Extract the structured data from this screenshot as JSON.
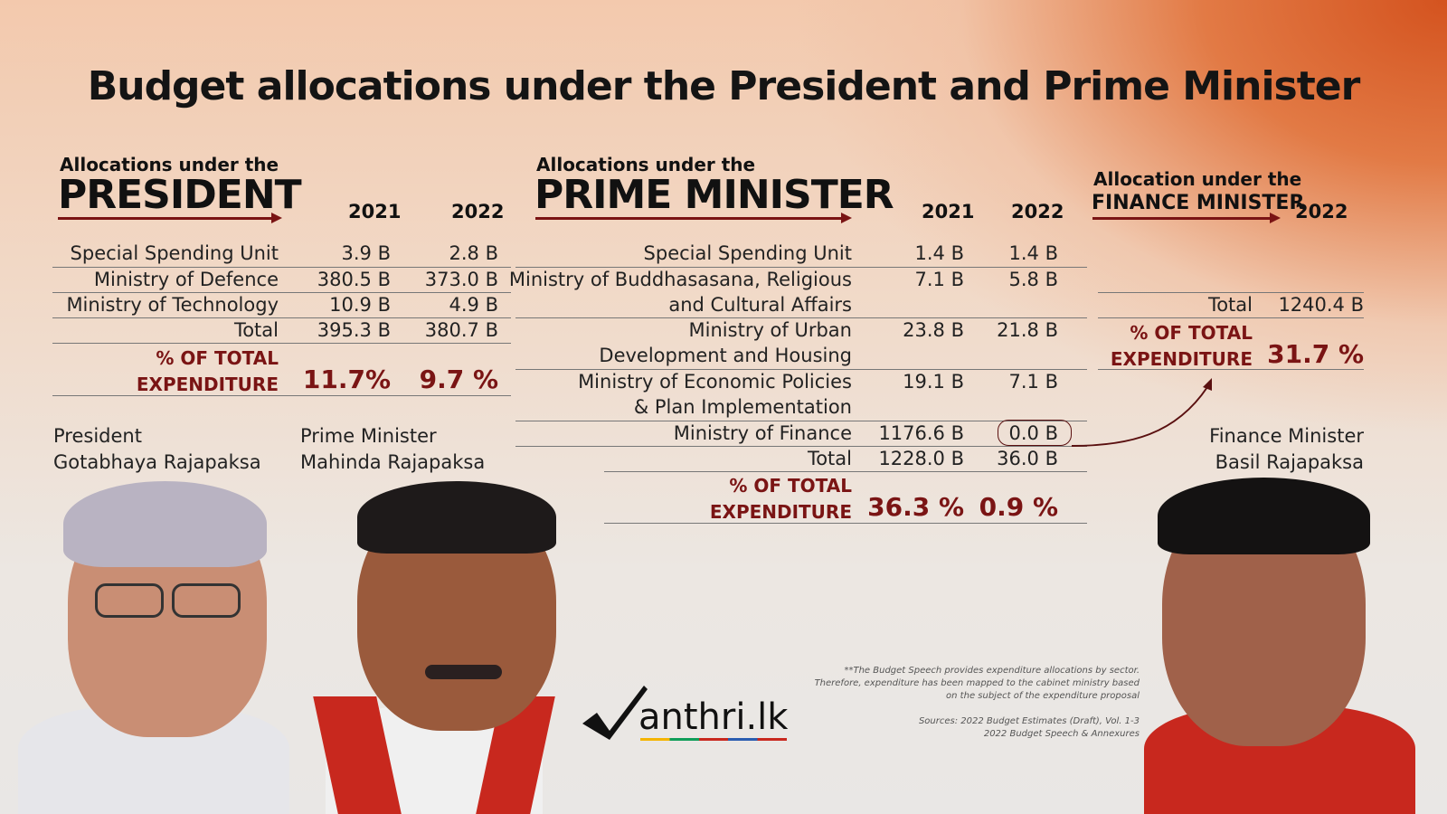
{
  "title": "Budget allocations under the President and Prime Minister",
  "president_section": {
    "label_small": "Allocations under the",
    "label_big": "PRESIDENT",
    "year1": "2021",
    "year2": "2022",
    "rows": [
      {
        "label": "Special Spending Unit",
        "v2021": "3.9 B",
        "v2022": "2.8 B"
      },
      {
        "label": "Ministry of Defence",
        "v2021": "380.5 B",
        "v2022": "373.0 B"
      },
      {
        "label": "Ministry of Technology",
        "v2021": "10.9 B",
        "v2022": "4.9 B"
      },
      {
        "label": "Total",
        "v2021": "395.3 B",
        "v2022": "380.7 B"
      }
    ],
    "pct_label_1": "% OF TOTAL",
    "pct_label_2": "EXPENDITURE",
    "pct2021": "11.7%",
    "pct2022": "9.7 %"
  },
  "pm_section": {
    "label_small": "Allocations under the",
    "label_big": "PRIME MINISTER",
    "year1": "2021",
    "year2": "2022",
    "rows": [
      {
        "label": "Special Spending Unit",
        "v2021": "1.4 B",
        "v2022": "1.4 B"
      },
      {
        "label": "Ministry of Buddhasasana, Religious",
        "label2": "and Cultural Affairs",
        "v2021": "7.1 B",
        "v2022": "5.8 B"
      },
      {
        "label": "Ministry of Urban",
        "label2": "Development and Housing",
        "v2021": "23.8 B",
        "v2022": "21.8 B"
      },
      {
        "label": "Ministry of Economic Policies",
        "label2": "& Plan Implementation",
        "v2021": "19.1 B",
        "v2022": "7.1 B"
      },
      {
        "label": "Ministry of Finance",
        "v2021": "1176.6 B",
        "v2022": "0.0 B"
      },
      {
        "label": "Total",
        "v2021": "1228.0 B",
        "v2022": "36.0 B"
      }
    ],
    "pct_label_1": "% OF TOTAL",
    "pct_label_2": "EXPENDITURE",
    "pct2021": "36.3 %",
    "pct2022": "0.9 %"
  },
  "fm_section": {
    "label_small": "Allocation under the",
    "label_big": "FINANCE MINISTER",
    "year": "2022",
    "total_label": "Total",
    "total_value": "1240.4 B",
    "pct_label_1": "% OF TOTAL",
    "pct_label_2": "EXPENDITURE",
    "pct": "31.7 %"
  },
  "people": {
    "president_role": "President",
    "president_name": "Gotabhaya Rajapaksa",
    "pm_role": "Prime Minister",
    "pm_name": "Mahinda Rajapaksa",
    "fm_role": "Finance Minister",
    "fm_name": "Basil Rajapaksa"
  },
  "logo": {
    "text": "anthri.lk"
  },
  "footnote": {
    "line1": "**The Budget Speech provides expenditure allocations by sector.",
    "line2": "Therefore, expenditure has been mapped to the cabinet ministry based",
    "line3": "on the subject of the expenditure proposal",
    "src1": "Sources: 2022 Budget Estimates (Draft), Vol. 1-3",
    "src2": "2022 Budget Speech & Annexures"
  },
  "colors": {
    "accent": "#7a1414",
    "background_orange": "#d4531f"
  }
}
